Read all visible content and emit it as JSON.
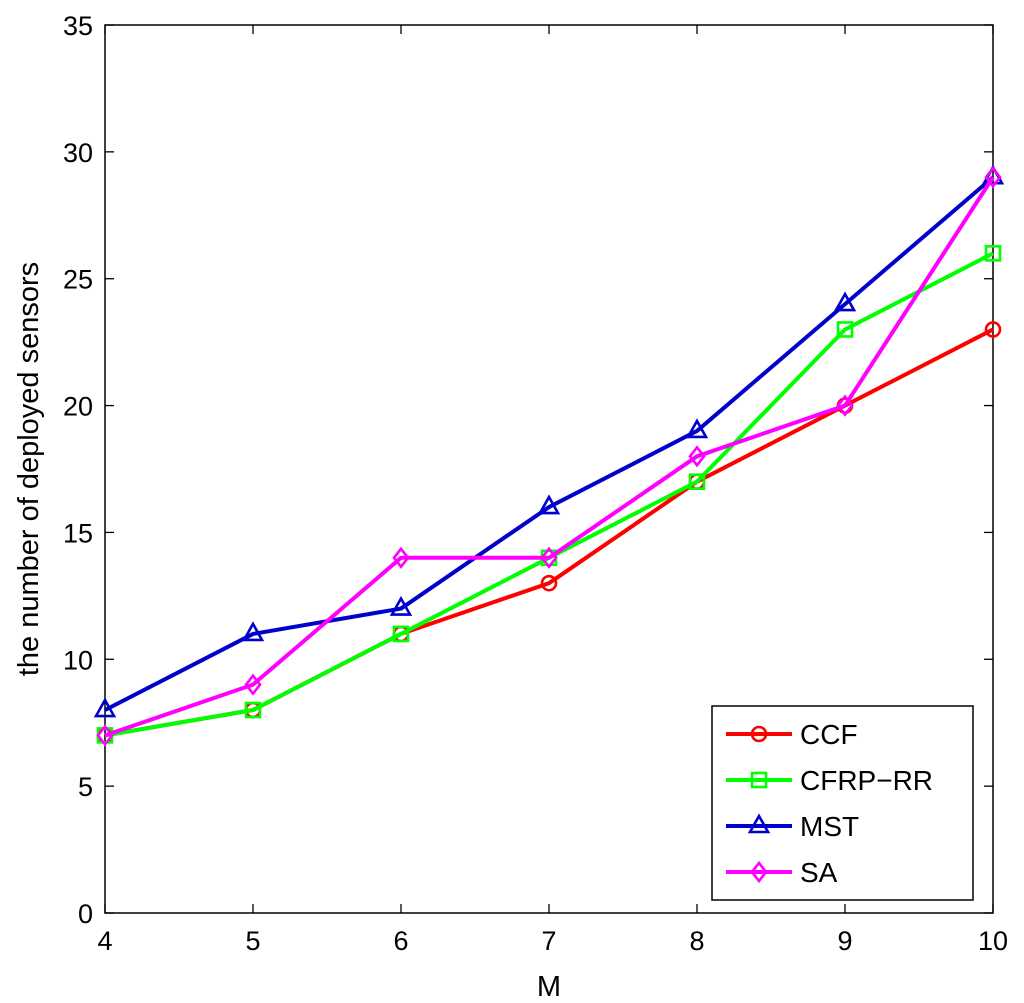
{
  "chart_data": {
    "type": "line",
    "title": "",
    "xlabel": "M",
    "ylabel": "the number of deployed sensors",
    "x": [
      4,
      5,
      6,
      7,
      8,
      9,
      10
    ],
    "xlim": [
      4,
      10
    ],
    "ylim": [
      0,
      35
    ],
    "xticks": [
      4,
      5,
      6,
      7,
      8,
      9,
      10
    ],
    "yticks": [
      0,
      5,
      10,
      15,
      20,
      25,
      30,
      35
    ],
    "grid": false,
    "legend_position": "bottom-right",
    "series": [
      {
        "name": "CCF",
        "color": "#ff0000",
        "marker": "circle",
        "values": [
          7,
          8,
          11,
          13,
          17,
          20,
          23
        ]
      },
      {
        "name": "CFRP−RR",
        "color": "#00ff00",
        "marker": "square",
        "values": [
          7,
          8,
          11,
          14,
          17,
          23,
          26
        ]
      },
      {
        "name": "MST",
        "color": "#0000cc",
        "marker": "triangle",
        "values": [
          8,
          11,
          12,
          16,
          19,
          24,
          29
        ]
      },
      {
        "name": "SA",
        "color": "#ff00ff",
        "marker": "diamond",
        "values": [
          7,
          9,
          14,
          14,
          18,
          20,
          29
        ]
      }
    ]
  }
}
